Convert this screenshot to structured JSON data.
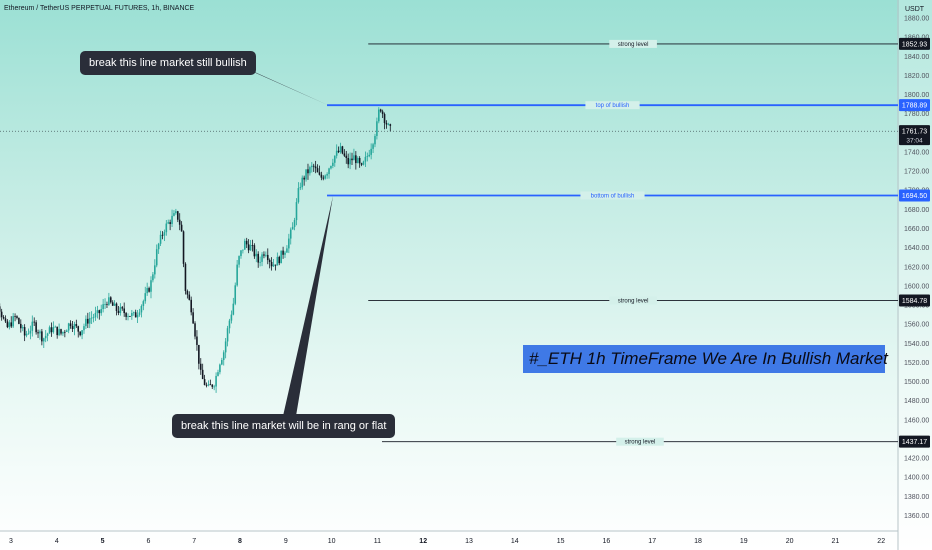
{
  "header": {
    "title": "Ethereum / TetherUS PERPETUAL FUTURES, 1h, BINANCE"
  },
  "chart_data": {
    "type": "candlestick",
    "currency": "USDT",
    "y_ticks": [
      1360,
      1380,
      1400,
      1420,
      1440,
      1460,
      1480,
      1500,
      1520,
      1540,
      1560,
      1580,
      1600,
      1620,
      1640,
      1660,
      1680,
      1700,
      1720,
      1740,
      1760,
      1780,
      1800,
      1820,
      1840,
      1860,
      1880
    ],
    "x_ticks": [
      {
        "label": "3",
        "x": 3
      },
      {
        "label": "4",
        "x": 4
      },
      {
        "label": "5",
        "x": 5
      },
      {
        "label": "6",
        "x": 6
      },
      {
        "label": "7",
        "x": 7
      },
      {
        "label": "8",
        "x": 8
      },
      {
        "label": "9",
        "x": 9
      },
      {
        "label": "10",
        "x": 10
      },
      {
        "label": "11",
        "x": 11
      },
      {
        "label": "12",
        "x": 12
      },
      {
        "label": "13",
        "x": 13
      },
      {
        "label": "14",
        "x": 14
      },
      {
        "label": "15",
        "x": 15
      },
      {
        "label": "16",
        "x": 16
      },
      {
        "label": "17",
        "x": 17
      },
      {
        "label": "18",
        "x": 18
      },
      {
        "label": "19",
        "x": 19
      },
      {
        "label": "20",
        "x": 20
      },
      {
        "label": "21",
        "x": 21
      },
      {
        "label": "22",
        "x": 22
      }
    ],
    "bold_x_labels": [
      "5",
      "8",
      "12"
    ],
    "price_path": [
      [
        2.4,
        1650
      ],
      [
        2.6,
        1600
      ],
      [
        2.9,
        1555
      ],
      [
        3.1,
        1568
      ],
      [
        3.3,
        1548
      ],
      [
        3.5,
        1560
      ],
      [
        3.7,
        1545
      ],
      [
        3.9,
        1556
      ],
      [
        4.1,
        1550
      ],
      [
        4.3,
        1562
      ],
      [
        4.5,
        1552
      ],
      [
        4.7,
        1566
      ],
      [
        4.9,
        1570
      ],
      [
        5.1,
        1585
      ],
      [
        5.3,
        1575
      ],
      [
        5.5,
        1572
      ],
      [
        5.7,
        1568
      ],
      [
        5.9,
        1585
      ],
      [
        6.05,
        1602
      ],
      [
        6.2,
        1640
      ],
      [
        6.35,
        1660
      ],
      [
        6.5,
        1670
      ],
      [
        6.62,
        1675
      ],
      [
        6.72,
        1660
      ],
      [
        6.8,
        1598
      ],
      [
        6.95,
        1575
      ],
      [
        7.05,
        1540
      ],
      [
        7.15,
        1505
      ],
      [
        7.3,
        1492
      ],
      [
        7.45,
        1500
      ],
      [
        7.55,
        1520
      ],
      [
        7.65,
        1532
      ],
      [
        7.75,
        1560
      ],
      [
        7.85,
        1580
      ],
      [
        7.95,
        1625
      ],
      [
        8.1,
        1645
      ],
      [
        8.25,
        1640
      ],
      [
        8.4,
        1625
      ],
      [
        8.55,
        1638
      ],
      [
        8.7,
        1622
      ],
      [
        8.85,
        1628
      ],
      [
        9.0,
        1640
      ],
      [
        9.15,
        1660
      ],
      [
        9.3,
        1705
      ],
      [
        9.45,
        1718
      ],
      [
        9.6,
        1725
      ],
      [
        9.75,
        1712
      ],
      [
        9.9,
        1720
      ],
      [
        10.05,
        1735
      ],
      [
        10.2,
        1742
      ],
      [
        10.35,
        1728
      ],
      [
        10.5,
        1735
      ],
      [
        10.65,
        1722
      ],
      [
        10.8,
        1738
      ],
      [
        10.9,
        1752
      ],
      [
        11.0,
        1770
      ],
      [
        11.05,
        1789
      ],
      [
        11.15,
        1776
      ],
      [
        11.25,
        1764
      ],
      [
        11.3,
        1761.73
      ]
    ],
    "horizontal_levels": [
      {
        "name": "strong level",
        "price": 1852.93,
        "price_label": "1852.93",
        "x_start": 10.8,
        "color": "#131722"
      },
      {
        "name": "top of bullish",
        "price": 1788.89,
        "price_label": "1788.89",
        "x_start": 9.9,
        "color": "#2962ff"
      },
      {
        "name": "bottom of bullish",
        "price": 1694.5,
        "price_label": "1694.50",
        "x_start": 9.9,
        "color": "#2962ff"
      },
      {
        "name": "strong level",
        "price": 1584.78,
        "price_label": "1584.78",
        "x_start": 10.8,
        "color": "#131722"
      },
      {
        "name": "strong level",
        "price": 1437.17,
        "price_label": "1437.17",
        "x_start": 11.1,
        "color": "#131722"
      }
    ],
    "current_price": {
      "value": 1761.73,
      "label": "1761.73",
      "countdown": "37:04"
    }
  },
  "annotations": {
    "callout_top": "break this line market still bullish",
    "callout_bottom": "break this line market will be in rang or flat",
    "banner": "#_ETH 1h TimeFrame  We Are In Bullish Market"
  },
  "colors": {
    "up": "#26a69a",
    "down": "#131722",
    "level_blue": "#2962ff",
    "callout_bg": "#2a2e39",
    "banner_bg": "#3f79e6"
  }
}
